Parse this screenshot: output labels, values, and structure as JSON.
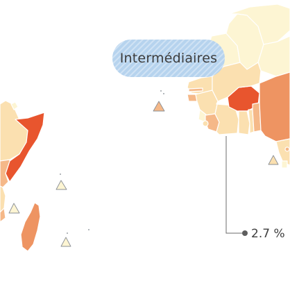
{
  "region_label": "Intermédiaires",
  "callout": {
    "value": "2.7 %"
  },
  "colors": {
    "cat_very_light": "#fdf5d3",
    "cat_light": "#fbe0b0",
    "cat_medium": "#f5b888",
    "cat_strong": "#ee9462",
    "cat_very_strong": "#e8552e",
    "label_pill": "#b6d3ee",
    "leader_line": "#6b6b6b"
  }
}
